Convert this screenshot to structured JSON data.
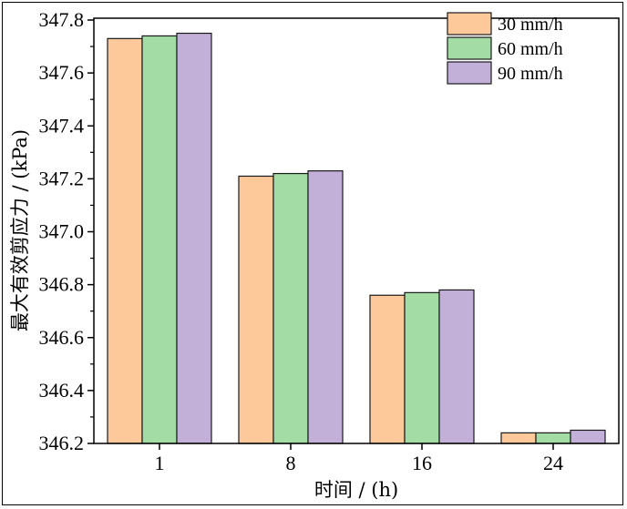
{
  "chart_data": {
    "type": "bar",
    "categories": [
      "1",
      "8",
      "16",
      "24"
    ],
    "series": [
      {
        "name": "30 mm/h",
        "color": "#fdc99b",
        "values": [
          347.73,
          347.21,
          346.76,
          346.24
        ]
      },
      {
        "name": "60 mm/h",
        "color": "#a3dca4",
        "values": [
          347.74,
          347.22,
          346.77,
          346.24
        ]
      },
      {
        "name": "90 mm/h",
        "color": "#c2b0d8",
        "values": [
          347.75,
          347.23,
          346.78,
          346.25
        ]
      }
    ],
    "xlabel": "时间 / (h)",
    "ylabel": "最大有效剪应力 / (kPa)",
    "ylim": [
      346.2,
      347.8
    ],
    "yticks": [
      "346.2",
      "346.4",
      "346.6",
      "346.8",
      "347.0",
      "347.2",
      "347.4",
      "347.6",
      "347.8"
    ],
    "grid": false,
    "legend_position": "top-right"
  }
}
